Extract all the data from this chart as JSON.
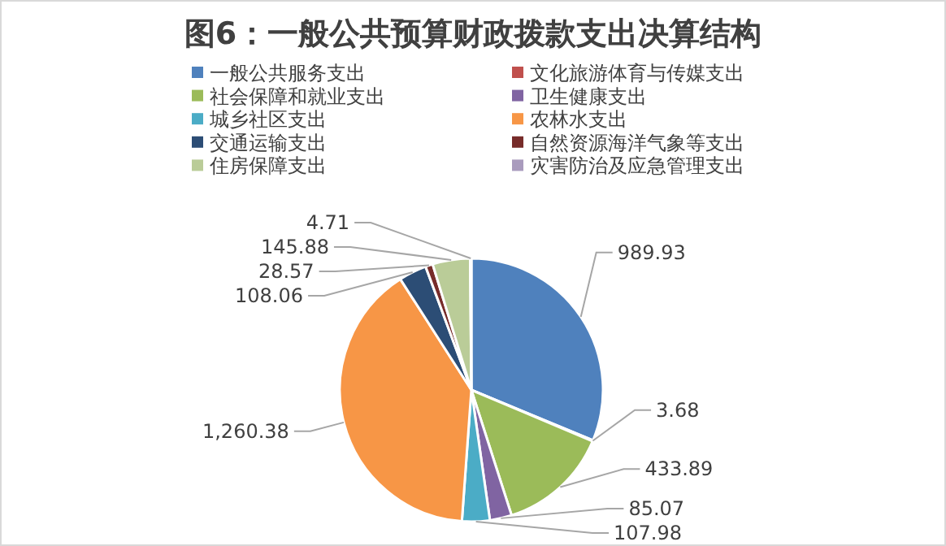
{
  "chart_data": {
    "type": "pie",
    "title": "图6：一般公共预算财政拨款支出决算结构",
    "categories": [
      "一般公共服务支出",
      "文化旅游体育与传媒支出",
      "社会保障和就业支出",
      "卫生健康支出",
      "城乡社区支出",
      "农林水支出",
      "交通运输支出",
      "自然资源海洋气象等支出",
      "住房保障支出",
      "灾害防治及应急管理支出"
    ],
    "values": [
      989.93,
      3.68,
      433.89,
      85.07,
      107.98,
      1260.38,
      108.06,
      28.57,
      145.88,
      4.71
    ],
    "colors": [
      "#4f81bd",
      "#c0504d",
      "#9bbb59",
      "#8064a2",
      "#4bacc6",
      "#f79646",
      "#2c4d75",
      "#772c2a",
      "#bacc98",
      "#a99bbd"
    ],
    "value_labels": [
      "989.93",
      "3.68",
      "433.89",
      "85.07",
      "107.98",
      "1,260.38",
      "108.06",
      "28.57",
      "145.88",
      "4.71"
    ],
    "legend": "top"
  }
}
